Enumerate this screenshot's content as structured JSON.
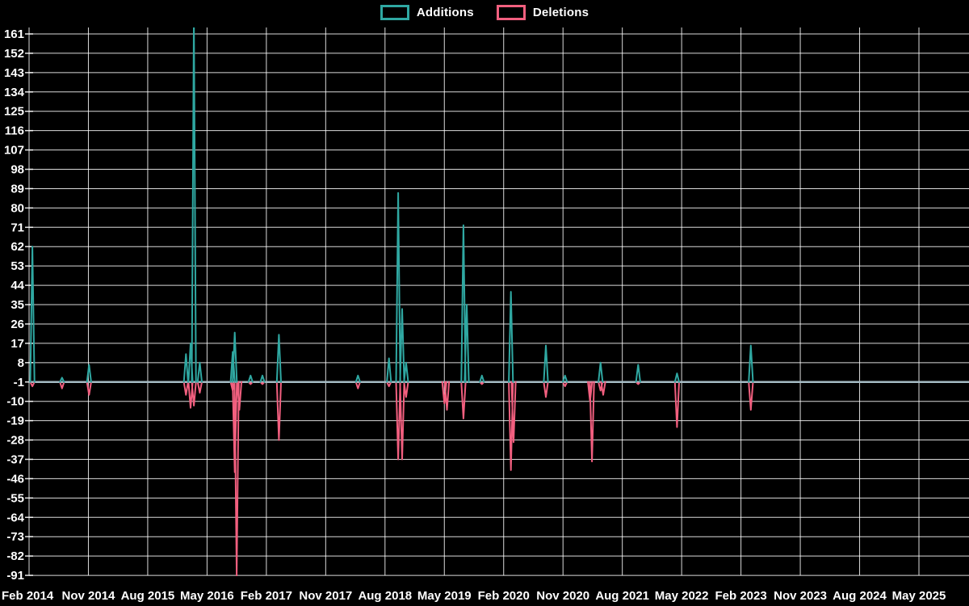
{
  "legend": {
    "items": [
      {
        "label": "Additions"
      },
      {
        "label": "Deletions"
      }
    ]
  },
  "chart_data": {
    "type": "line",
    "title": "",
    "xlabel": "",
    "ylabel": "",
    "background_color": "#000000",
    "grid_color": "#ffffff",
    "text_color": "#ffffff",
    "baseline_color": "#a5bbc4",
    "baseline_value": -1,
    "ylim": [
      -91,
      161
    ],
    "y_ticks": [
      161,
      152,
      143,
      134,
      125,
      116,
      107,
      98,
      89,
      80,
      71,
      62,
      53,
      44,
      35,
      26,
      17,
      8,
      -1,
      -10,
      -19,
      -28,
      -37,
      -46,
      -55,
      -64,
      -73,
      -82,
      -91
    ],
    "x_tick_labels": [
      "Feb 2014",
      "Nov 2014",
      "Aug 2015",
      "May 2016",
      "Feb 2017",
      "Nov 2017",
      "Aug 2018",
      "May 2019",
      "Feb 2020",
      "Nov 2020",
      "Aug 2021",
      "May 2022",
      "Feb 2023",
      "Nov 2023",
      "Aug 2024",
      "May 2025"
    ],
    "x_tick_interval_months": 9,
    "x_range_months": [
      0,
      142.5
    ],
    "legend_position": "top-center",
    "grid": true,
    "clip_note": "Additions spike at ~May 2016 exceeds the axis maximum and is clipped at the plot top",
    "series": [
      {
        "name": "Additions",
        "color": "#2fa8a2",
        "baseline": -1,
        "spikes": [
          [
            0.5,
            62
          ],
          [
            5.0,
            1
          ],
          [
            9.1,
            7
          ],
          [
            23.8,
            12
          ],
          [
            24.5,
            17
          ],
          [
            25.0,
            170
          ],
          [
            25.9,
            8
          ],
          [
            30.9,
            13
          ],
          [
            31.2,
            22
          ],
          [
            33.6,
            2
          ],
          [
            35.4,
            2
          ],
          [
            37.9,
            21
          ],
          [
            49.9,
            2
          ],
          [
            54.6,
            10
          ],
          [
            56.0,
            87
          ],
          [
            56.6,
            33
          ],
          [
            57.2,
            8
          ],
          [
            65.9,
            72
          ],
          [
            66.4,
            35
          ],
          [
            68.7,
            2
          ],
          [
            73.1,
            41
          ],
          [
            78.4,
            16
          ],
          [
            81.3,
            2
          ],
          [
            86.7,
            8
          ],
          [
            92.4,
            7
          ],
          [
            98.3,
            3
          ],
          [
            109.5,
            16
          ]
        ]
      },
      {
        "name": "Deletions",
        "color": "#f25f7f",
        "baseline": -1,
        "spikes": [
          [
            0.5,
            -3
          ],
          [
            5.0,
            -4
          ],
          [
            9.1,
            -7
          ],
          [
            23.8,
            -7
          ],
          [
            24.5,
            -13
          ],
          [
            25.0,
            -12
          ],
          [
            25.9,
            -6
          ],
          [
            30.9,
            -5
          ],
          [
            31.2,
            -43
          ],
          [
            31.5,
            -91
          ],
          [
            31.9,
            -14
          ],
          [
            33.6,
            -2
          ],
          [
            35.4,
            -2
          ],
          [
            37.9,
            -28
          ],
          [
            49.9,
            -4
          ],
          [
            54.6,
            -3
          ],
          [
            56.0,
            -37
          ],
          [
            56.6,
            -37
          ],
          [
            57.2,
            -8
          ],
          [
            63.0,
            -11
          ],
          [
            63.4,
            -14
          ],
          [
            65.9,
            -18
          ],
          [
            68.7,
            -2
          ],
          [
            73.1,
            -42
          ],
          [
            73.5,
            -29
          ],
          [
            78.4,
            -8
          ],
          [
            81.3,
            -3
          ],
          [
            85.1,
            -10
          ],
          [
            85.4,
            -38
          ],
          [
            86.7,
            -5
          ],
          [
            87.1,
            -7
          ],
          [
            92.4,
            -2
          ],
          [
            98.3,
            -22
          ],
          [
            109.5,
            -14
          ]
        ]
      }
    ]
  }
}
